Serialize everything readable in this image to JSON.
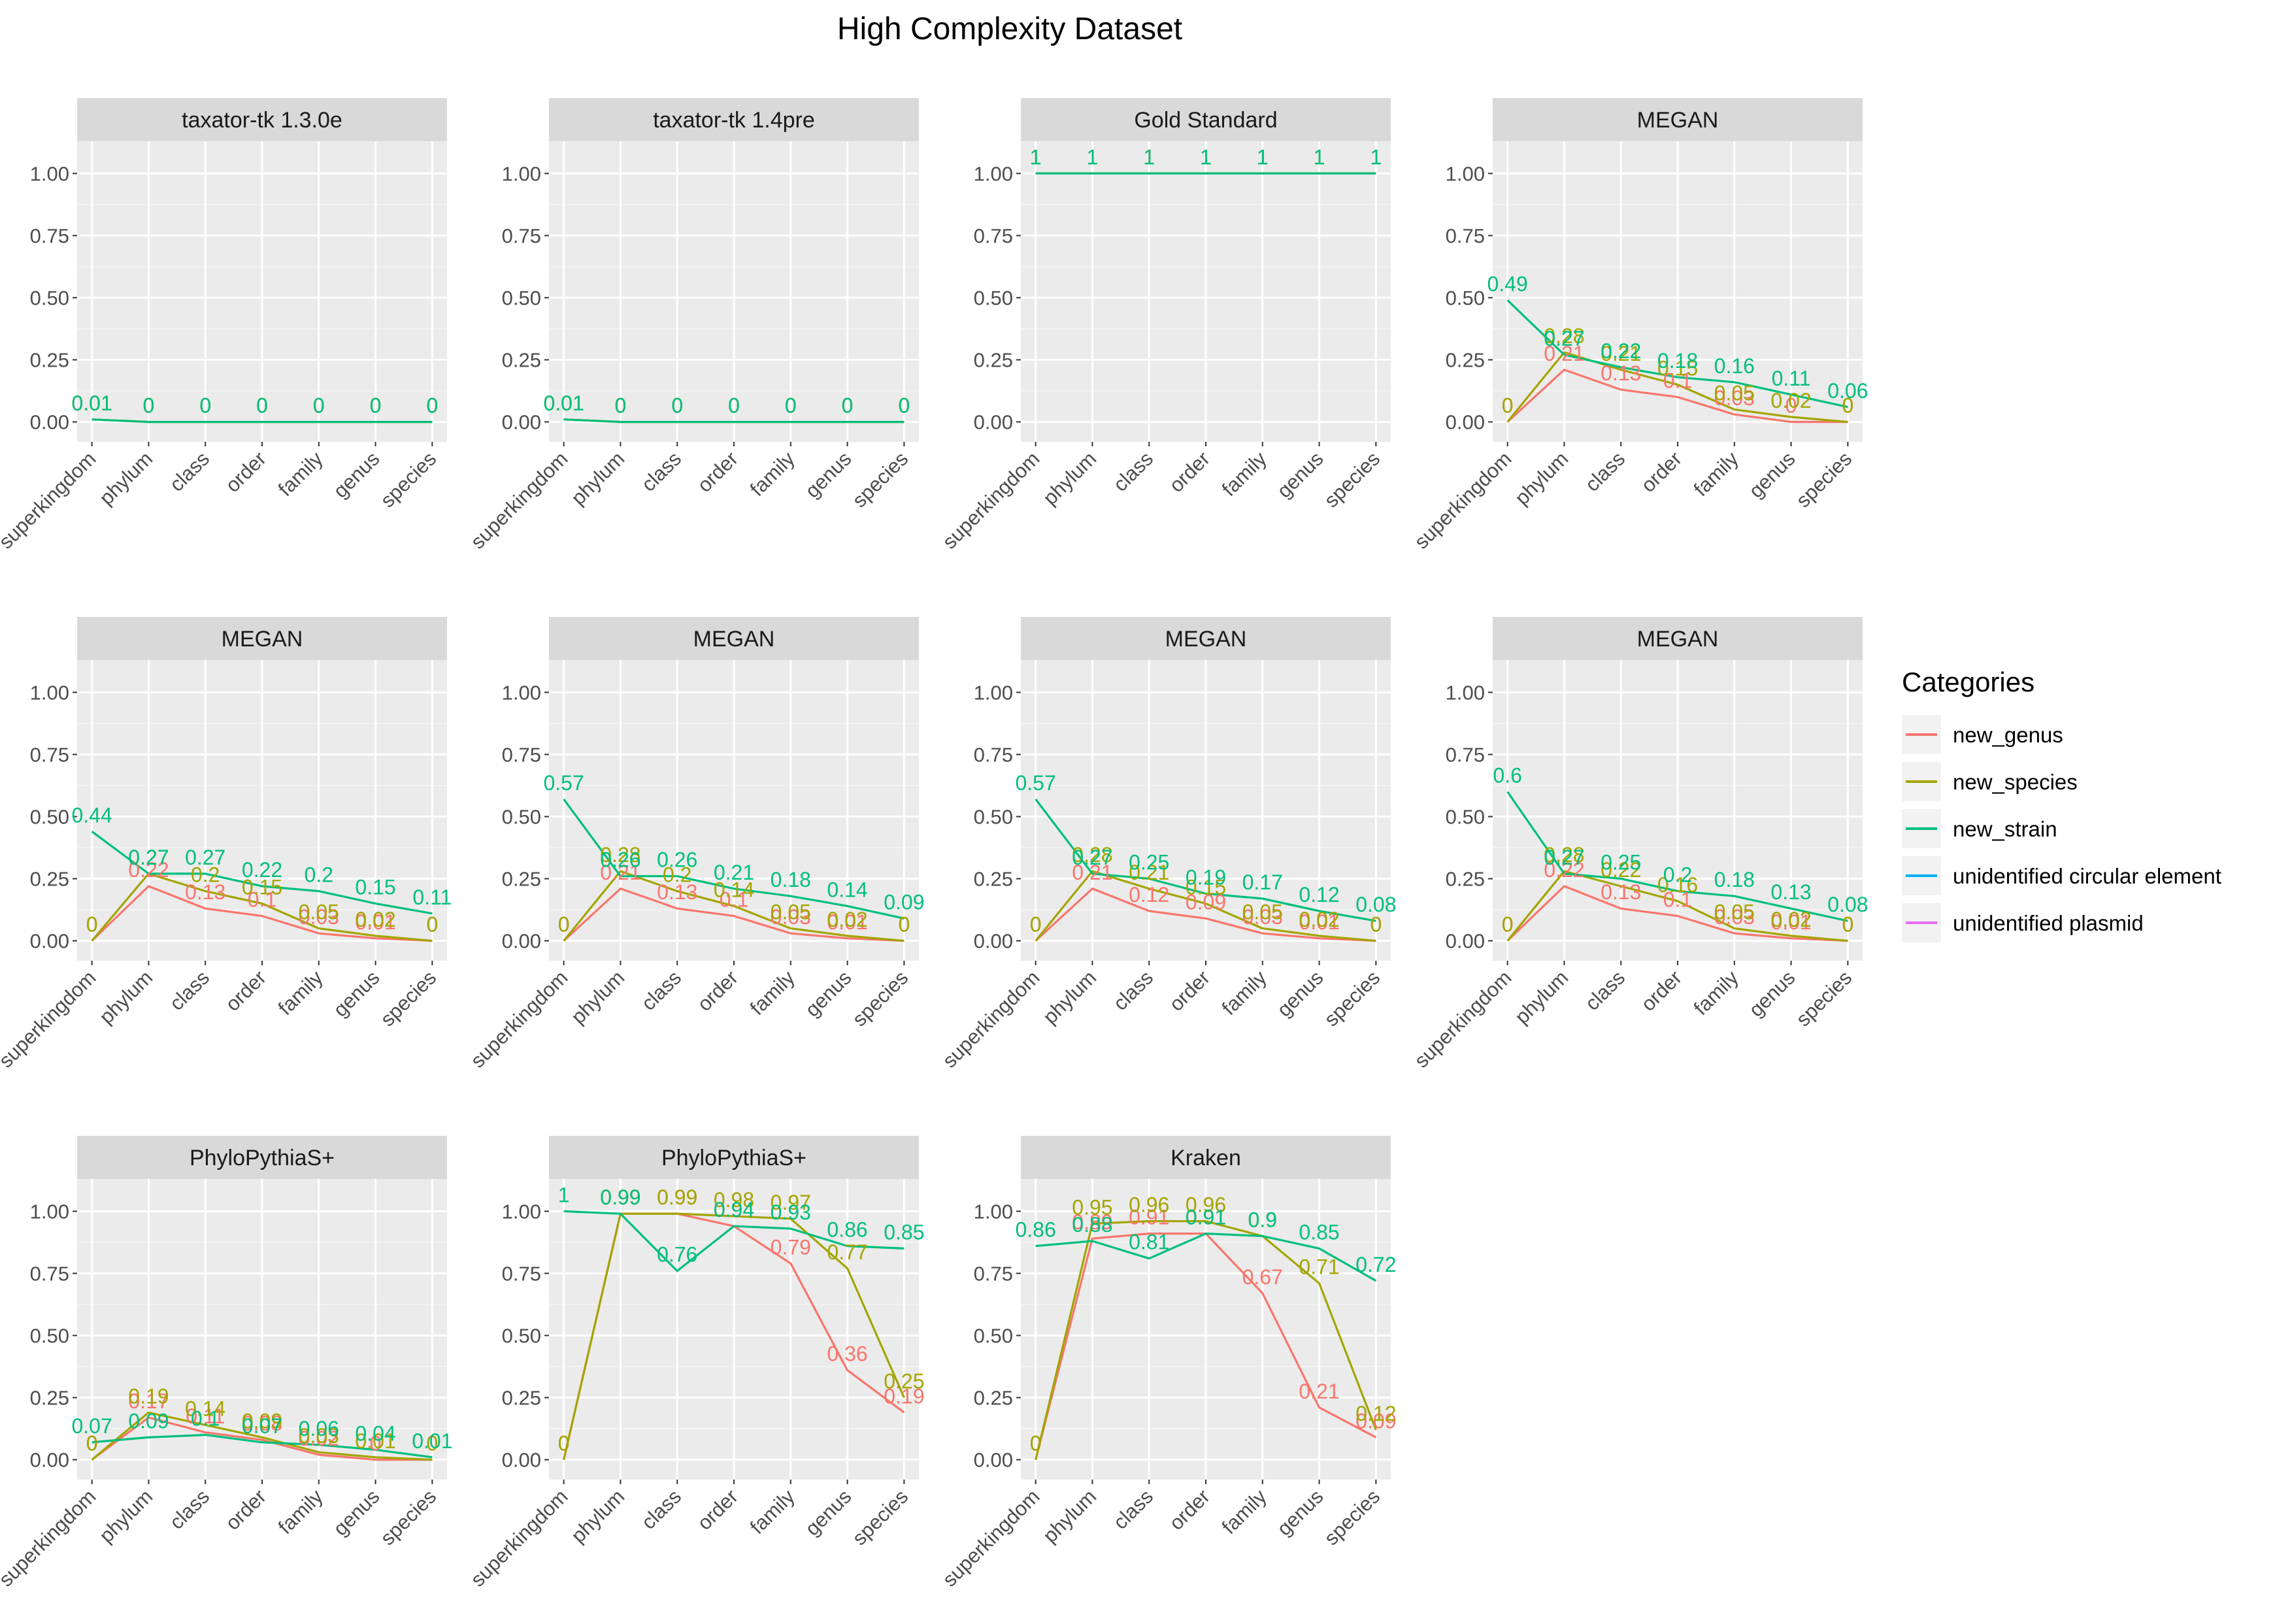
{
  "chart_data": {
    "type": "line",
    "title": "High Complexity Dataset",
    "categories": [
      "superkingdom",
      "phylum",
      "class",
      "order",
      "family",
      "genus",
      "species"
    ],
    "ylim": [
      -0.08,
      1.13
    ],
    "yticks": [
      0,
      0.25,
      0.5,
      0.75,
      1
    ],
    "ytick_labels": [
      "0.00",
      "0.25",
      "0.50",
      "0.75",
      "1.00"
    ],
    "grid": true,
    "legend": {
      "title": "Categories",
      "position": "right",
      "entries": [
        {
          "name": "new_genus",
          "color": "#F8766D"
        },
        {
          "name": "new_species",
          "color": "#A3A500"
        },
        {
          "name": "new_strain",
          "color": "#00BF7D"
        },
        {
          "name": "unidentified circular element",
          "color": "#00B0F6"
        },
        {
          "name": "unidentified plasmid",
          "color": "#E76BF3"
        }
      ]
    },
    "panels": [
      {
        "title": "taxator-tk 1.3.0e",
        "series": [
          {
            "name": "new_genus",
            "values": [
              0.01,
              0,
              0,
              0,
              0,
              0,
              0
            ],
            "labels": [
              "0.01",
              "0",
              "0",
              "0",
              "0",
              "0",
              "0"
            ]
          },
          {
            "name": "new_species",
            "values": [
              0.01,
              0,
              0,
              0,
              0,
              0,
              0
            ],
            "labels": [
              "0.01",
              "0",
              "0",
              "0",
              "0",
              "0",
              "0"
            ]
          },
          {
            "name": "new_strain",
            "values": [
              0.01,
              0,
              0,
              0,
              0,
              0,
              0
            ],
            "labels": [
              "0.01",
              "0",
              "0",
              "0",
              "0",
              "0",
              "0"
            ]
          }
        ]
      },
      {
        "title": "taxator-tk 1.4pre",
        "series": [
          {
            "name": "new_genus",
            "values": [
              0.01,
              0,
              0,
              0,
              0,
              0,
              0
            ],
            "labels": [
              "0.01",
              "0",
              "0",
              "0",
              "0",
              "0",
              "0"
            ]
          },
          {
            "name": "new_species",
            "values": [
              0.01,
              0,
              0,
              0,
              0,
              0,
              0
            ],
            "labels": [
              "0.01",
              "0",
              "0",
              "0",
              "0",
              "0",
              "0"
            ]
          },
          {
            "name": "new_strain",
            "values": [
              0.01,
              0,
              0,
              0,
              0,
              0,
              0
            ],
            "labels": [
              "0.01",
              "0",
              "0",
              "0",
              "0",
              "0",
              "0"
            ]
          }
        ]
      },
      {
        "title": "Gold Standard",
        "series": [
          {
            "name": "new_genus",
            "values": [
              1,
              1,
              1,
              1,
              1,
              1,
              1
            ],
            "labels": [
              "1",
              "1",
              "1",
              "1",
              "1",
              "1",
              "1"
            ]
          },
          {
            "name": "new_species",
            "values": [
              1,
              1,
              1,
              1,
              1,
              1,
              1
            ],
            "labels": [
              "1",
              "1",
              "1",
              "1",
              "1",
              "1",
              "1"
            ]
          },
          {
            "name": "new_strain",
            "values": [
              1,
              1,
              1,
              1,
              1,
              1,
              1
            ],
            "labels": [
              "1",
              "1",
              "1",
              "1",
              "1",
              "1",
              "1"
            ]
          }
        ]
      },
      {
        "title": "MEGAN",
        "series": [
          {
            "name": "new_genus",
            "values": [
              0,
              0.21,
              0.13,
              0.1,
              0.03,
              0,
              0
            ],
            "labels": [
              "0",
              "0.21",
              "0.13",
              "0.1",
              "0.03",
              "0",
              "0"
            ]
          },
          {
            "name": "new_species",
            "values": [
              0,
              0.28,
              0.21,
              0.15,
              0.05,
              0.02,
              0
            ],
            "labels": [
              "0",
              "0.28",
              "0.21",
              "0.15",
              "0.05",
              "0.02",
              "0"
            ]
          },
          {
            "name": "new_strain",
            "values": [
              0.49,
              0.27,
              0.22,
              0.18,
              0.16,
              0.11,
              0.06
            ],
            "labels": [
              "0.49",
              "0.27",
              "0.22",
              "0.18",
              "0.16",
              "0.11",
              "0.06"
            ]
          }
        ]
      },
      {
        "title": "MEGAN",
        "series": [
          {
            "name": "new_genus",
            "values": [
              0,
              0.22,
              0.13,
              0.1,
              0.03,
              0.01,
              0
            ],
            "labels": [
              "0",
              "0.22",
              "0.13",
              "0.1",
              "0.03",
              "0.01",
              "0"
            ]
          },
          {
            "name": "new_species",
            "values": [
              0,
              0.27,
              0.2,
              0.15,
              0.05,
              0.02,
              0
            ],
            "labels": [
              "0",
              "0.27",
              "0.2",
              "0.15",
              "0.05",
              "0.02",
              "0"
            ]
          },
          {
            "name": "new_strain",
            "values": [
              0.44,
              0.27,
              0.27,
              0.22,
              0.2,
              0.15,
              0.11
            ],
            "labels": [
              "0.44",
              "0.27",
              "0.27",
              "0.22",
              "0.2",
              "0.15",
              "0.11"
            ]
          }
        ]
      },
      {
        "title": "MEGAN",
        "series": [
          {
            "name": "new_genus",
            "values": [
              0,
              0.21,
              0.13,
              0.1,
              0.03,
              0.01,
              0
            ],
            "labels": [
              "0",
              "0.21",
              "0.13",
              "0.1",
              "0.03",
              "0.01",
              "0"
            ]
          },
          {
            "name": "new_species",
            "values": [
              0,
              0.28,
              0.2,
              0.14,
              0.05,
              0.02,
              0
            ],
            "labels": [
              "0",
              "0.28",
              "0.2",
              "0.14",
              "0.05",
              "0.02",
              "0"
            ]
          },
          {
            "name": "new_strain",
            "values": [
              0.57,
              0.26,
              0.26,
              0.21,
              0.18,
              0.14,
              0.09
            ],
            "labels": [
              "0.57",
              "0.26",
              "0.26",
              "0.21",
              "0.18",
              "0.14",
              "0.09"
            ]
          }
        ]
      },
      {
        "title": "MEGAN",
        "series": [
          {
            "name": "new_genus",
            "values": [
              0,
              0.21,
              0.12,
              0.09,
              0.03,
              0.01,
              0
            ],
            "labels": [
              "0",
              "0.21",
              "0.12",
              "0.09",
              "0.03",
              "0.01",
              "0"
            ]
          },
          {
            "name": "new_species",
            "values": [
              0,
              0.28,
              0.21,
              0.15,
              0.05,
              0.02,
              0
            ],
            "labels": [
              "0",
              "0.28",
              "0.21",
              "0.15",
              "0.05",
              "0.02",
              "0"
            ]
          },
          {
            "name": "new_strain",
            "values": [
              0.57,
              0.27,
              0.25,
              0.19,
              0.17,
              0.12,
              0.08
            ],
            "labels": [
              "0.57",
              "0.27",
              "0.25",
              "0.19",
              "0.17",
              "0.12",
              "0.08"
            ]
          }
        ]
      },
      {
        "title": "MEGAN",
        "series": [
          {
            "name": "new_genus",
            "values": [
              0,
              0.22,
              0.13,
              0.1,
              0.03,
              0.01,
              0
            ],
            "labels": [
              "0",
              "0.22",
              "0.13",
              "0.1",
              "0.03",
              "0.01",
              "0"
            ]
          },
          {
            "name": "new_species",
            "values": [
              0,
              0.28,
              0.22,
              0.16,
              0.05,
              0.02,
              0
            ],
            "labels": [
              "0",
              "0.28",
              "0.22",
              "0.16",
              "0.05",
              "0.02",
              "0"
            ]
          },
          {
            "name": "new_strain",
            "values": [
              0.6,
              0.27,
              0.25,
              0.2,
              0.18,
              0.13,
              0.08
            ],
            "labels": [
              "0.6",
              "0.27",
              "0.25",
              "0.2",
              "0.18",
              "0.13",
              "0.08"
            ]
          }
        ]
      },
      {
        "title": "PhyloPythiaS+",
        "series": [
          {
            "name": "new_genus",
            "values": [
              0,
              0.17,
              0.11,
              0.08,
              0.02,
              0,
              0
            ],
            "labels": [
              "0",
              "0.17",
              "0.11",
              "0.08",
              "0.02",
              "0",
              "0"
            ]
          },
          {
            "name": "new_species",
            "values": [
              0,
              0.19,
              0.14,
              0.09,
              0.03,
              0.01,
              0
            ],
            "labels": [
              "0",
              "0.19",
              "0.14",
              "0.09",
              "0.03",
              "0.01",
              "0"
            ]
          },
          {
            "name": "new_strain",
            "values": [
              0.07,
              0.09,
              0.1,
              0.07,
              0.06,
              0.04,
              0.01
            ],
            "labels": [
              "0.07",
              "0.09",
              "0.1",
              "0.07",
              "0.06",
              "0.04",
              "0.01"
            ]
          }
        ]
      },
      {
        "title": "PhyloPythiaS+",
        "series": [
          {
            "name": "new_genus",
            "values": [
              0,
              0.99,
              0.99,
              0.94,
              0.79,
              0.36,
              0.19
            ],
            "labels": [
              "0",
              "0.99",
              "0.99",
              "0.94",
              "0.79",
              "0.36",
              "0.19"
            ]
          },
          {
            "name": "new_species",
            "values": [
              0,
              0.99,
              0.99,
              0.98,
              0.97,
              0.77,
              0.25
            ],
            "labels": [
              "0",
              "0.99",
              "0.99",
              "0.98",
              "0.97",
              "0.77",
              "0.25"
            ]
          },
          {
            "name": "new_strain",
            "values": [
              1,
              0.99,
              0.76,
              0.94,
              0.93,
              0.86,
              0.85
            ],
            "labels": [
              "1",
              "0.99",
              "0.76",
              "0.94",
              "0.93",
              "0.86",
              "0.85"
            ]
          }
        ]
      },
      {
        "title": "Kraken",
        "series": [
          {
            "name": "new_genus",
            "values": [
              0,
              0.89,
              0.91,
              0.91,
              0.67,
              0.21,
              0.09
            ],
            "labels": [
              "0",
              "0.89",
              "0.91",
              "0.91",
              "0.67",
              "0.21",
              "0.09"
            ]
          },
          {
            "name": "new_species",
            "values": [
              0,
              0.95,
              0.96,
              0.96,
              0.9,
              0.71,
              0.12
            ],
            "labels": [
              "0",
              "0.95",
              "0.96",
              "0.96",
              "0.9",
              "0.71",
              "0.12"
            ]
          },
          {
            "name": "new_strain",
            "values": [
              0.86,
              0.88,
              0.81,
              0.91,
              0.9,
              0.85,
              0.72
            ],
            "labels": [
              "0.86",
              "0.88",
              "0.81",
              "0.91",
              "0.9",
              "0.85",
              "0.72"
            ]
          }
        ]
      }
    ]
  }
}
